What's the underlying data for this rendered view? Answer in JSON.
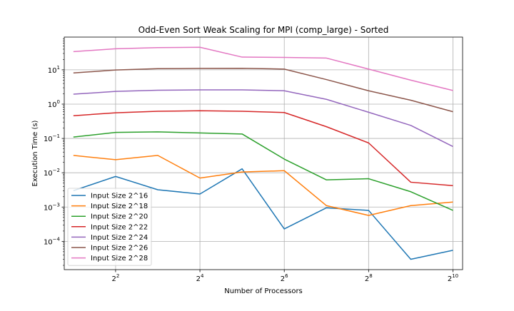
{
  "chart_data": {
    "type": "line",
    "title": "Odd-Even Sort Weak Scaling for MPI (comp_large) - Sorted",
    "xlabel": "Number of Processors",
    "ylabel": "Execution Time (s)",
    "x_scale": "log2",
    "y_scale": "log10",
    "x": [
      2,
      4,
      8,
      16,
      32,
      64,
      128,
      256,
      512,
      1024
    ],
    "xlim": [
      1.72,
      1200
    ],
    "ylim": [
      1.5e-05,
      90
    ],
    "x_ticks": [
      {
        "value": 4,
        "base": "2",
        "exp": "2"
      },
      {
        "value": 16,
        "base": "2",
        "exp": "4"
      },
      {
        "value": 64,
        "base": "2",
        "exp": "6"
      },
      {
        "value": 256,
        "base": "2",
        "exp": "8"
      },
      {
        "value": 1024,
        "base": "2",
        "exp": "10"
      }
    ],
    "y_ticks": [
      {
        "value": 0.0001,
        "base": "10",
        "exp": "−4"
      },
      {
        "value": 0.001,
        "base": "10",
        "exp": "−3"
      },
      {
        "value": 0.01,
        "base": "10",
        "exp": "−2"
      },
      {
        "value": 0.1,
        "base": "10",
        "exp": "−1"
      },
      {
        "value": 1,
        "base": "10",
        "exp": "0"
      },
      {
        "value": 10,
        "base": "10",
        "exp": "1"
      }
    ],
    "grid": true,
    "legend_position": "lower-left",
    "series": [
      {
        "name": "Input Size 2^16",
        "color": "#1f77b4",
        "values": [
          0.003,
          0.0078,
          0.0032,
          0.0024,
          0.013,
          0.00023,
          0.00095,
          0.0008,
          3e-05,
          5.5e-05
        ]
      },
      {
        "name": "Input Size 2^18",
        "color": "#ff7f0e",
        "values": [
          0.032,
          0.024,
          0.032,
          0.007,
          0.0105,
          0.0115,
          0.0011,
          0.00057,
          0.0011,
          0.0014
        ]
      },
      {
        "name": "Input Size 2^20",
        "color": "#2ca02c",
        "values": [
          0.11,
          0.15,
          0.155,
          0.145,
          0.135,
          0.025,
          0.0062,
          0.0067,
          0.0028,
          0.0008
        ]
      },
      {
        "name": "Input Size 2^22",
        "color": "#d62728",
        "values": [
          0.46,
          0.56,
          0.62,
          0.64,
          0.62,
          0.57,
          0.22,
          0.074,
          0.0053,
          0.0042
        ]
      },
      {
        "name": "Input Size 2^24",
        "color": "#9467bd",
        "values": [
          1.95,
          2.35,
          2.55,
          2.6,
          2.6,
          2.45,
          1.38,
          0.58,
          0.24,
          0.058
        ]
      },
      {
        "name": "Input Size 2^26",
        "color": "#8c564b",
        "values": [
          8.1,
          9.9,
          10.8,
          11.0,
          11.1,
          10.5,
          5.2,
          2.45,
          1.3,
          0.6
        ]
      },
      {
        "name": "Input Size 2^28",
        "color": "#e377c2",
        "values": [
          34.0,
          41.0,
          44.5,
          45.5,
          23.5,
          23.0,
          22.0,
          10.5,
          5.0,
          2.5
        ]
      }
    ]
  }
}
